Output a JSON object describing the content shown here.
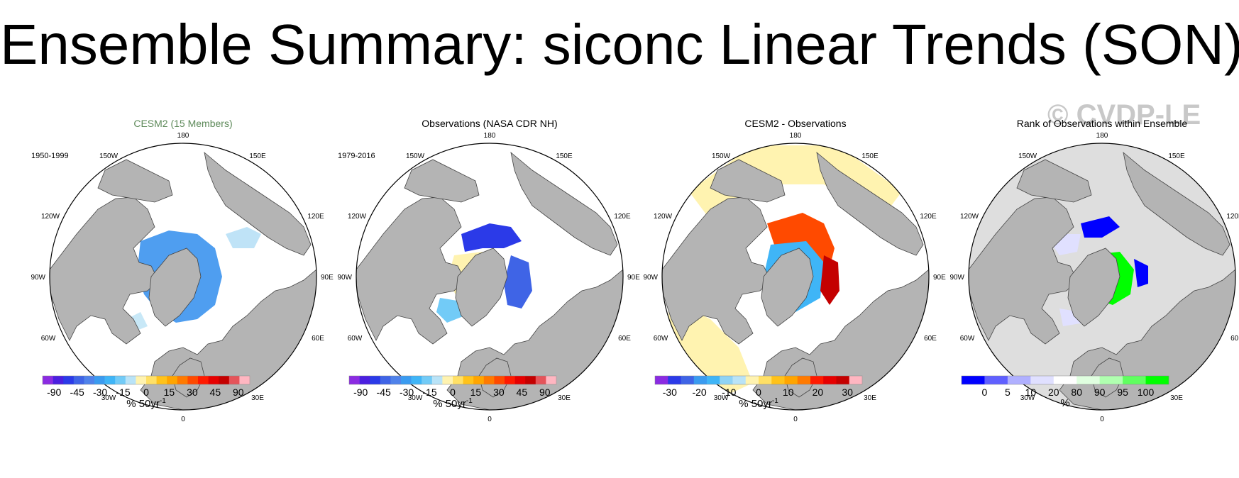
{
  "title": "Ensemble Summary: siconc Linear Trends (SON)",
  "watermark": "© CVDP-LE",
  "colors": {
    "land": "#b4b4b4",
    "ocean": "#ffffff",
    "rank_background": "#dedede"
  },
  "map_labels": {
    "top": "180",
    "bottom": "0",
    "left": "90W",
    "right": "90E",
    "upper_left": [
      "150W",
      "120W"
    ],
    "upper_right": [
      "150E",
      "120E"
    ],
    "lower_left": [
      "60W",
      "30W"
    ],
    "lower_right": [
      "60E",
      "30E"
    ]
  },
  "panels": [
    {
      "title": "CESM2 (15 Members)",
      "title_color": "#5e8a5a",
      "period": "1950-1999",
      "unit": "% 50yr",
      "unit_sup": "-1",
      "colorbar": {
        "colors": [
          "#8b2be2",
          "#4b1fe0",
          "#2b3ae8",
          "#3f64e6",
          "#4f82ea",
          "#3a9bf0",
          "#3fb5f7",
          "#72cbf7",
          "#b9e3f7",
          "#fff3b0",
          "#ffe066",
          "#ffc21a",
          "#ffa500",
          "#ff7a00",
          "#ff4a00",
          "#ff1a00",
          "#e60000",
          "#c40000",
          "#e5545a",
          "#ffb6c1"
        ],
        "labels": [
          "-90",
          "-45",
          "-30",
          "-15",
          "0",
          "15",
          "30",
          "45",
          "90"
        ]
      }
    },
    {
      "title": "Observations (NASA CDR NH)",
      "title_color": "#000000",
      "period": "1979-2016",
      "unit": "% 50yr",
      "unit_sup": "-1",
      "colorbar": {
        "colors": [
          "#8b2be2",
          "#4b1fe0",
          "#2b3ae8",
          "#3f64e6",
          "#4f82ea",
          "#3a9bf0",
          "#3fb5f7",
          "#72cbf7",
          "#b9e3f7",
          "#fff3b0",
          "#ffe066",
          "#ffc21a",
          "#ffa500",
          "#ff7a00",
          "#ff4a00",
          "#ff1a00",
          "#e60000",
          "#c40000",
          "#e5545a",
          "#ffb6c1"
        ],
        "labels": [
          "-90",
          "-45",
          "-30",
          "-15",
          "0",
          "15",
          "30",
          "45",
          "90"
        ]
      }
    },
    {
      "title": "CESM2 - Observations",
      "title_color": "#000000",
      "period": "",
      "unit": "% 50yr",
      "unit_sup": "-1",
      "colorbar": {
        "colors": [
          "#8b2be2",
          "#2b3ae8",
          "#3f64e6",
          "#3a9bf0",
          "#3fb5f7",
          "#8fd3f5",
          "#b9e3f7",
          "#fff3b0",
          "#ffe066",
          "#ffc21a",
          "#ffa500",
          "#ff7a00",
          "#ff1a00",
          "#e60000",
          "#c40000",
          "#ffb6c1"
        ],
        "labels": [
          "-30",
          "-20",
          "-10",
          "0",
          "10",
          "20",
          "30"
        ]
      }
    },
    {
      "title": "Rank of Observations within Ensemble",
      "title_color": "#000000",
      "period": "",
      "unit": "%",
      "unit_sup": "",
      "colorbar": {
        "colors": [
          "#0000ff",
          "#6060ff",
          "#b0b0ff",
          "#e0e0ff",
          "#ffffff",
          "#e0ffe0",
          "#b0ffb0",
          "#60ff60",
          "#00ff00"
        ],
        "labels": [
          "0",
          "5",
          "10",
          "20",
          "80",
          "90",
          "95",
          "100"
        ]
      }
    }
  ]
}
